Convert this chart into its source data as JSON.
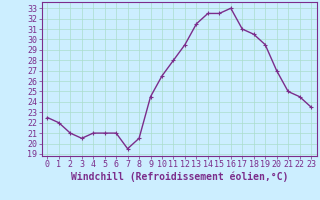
{
  "x": [
    0,
    1,
    2,
    3,
    4,
    5,
    6,
    7,
    8,
    9,
    10,
    11,
    12,
    13,
    14,
    15,
    16,
    17,
    18,
    19,
    20,
    21,
    22,
    23
  ],
  "y": [
    22.5,
    22.0,
    21.0,
    20.5,
    21.0,
    21.0,
    21.0,
    19.5,
    20.5,
    24.5,
    26.5,
    28.0,
    29.5,
    31.5,
    32.5,
    32.5,
    33.0,
    31.0,
    30.5,
    29.5,
    27.0,
    25.0,
    24.5,
    23.5
  ],
  "line_color": "#7b2d8b",
  "marker": "+",
  "marker_size": 3,
  "linewidth": 1.0,
  "xlabel": "Windchill (Refroidissement éolien,°C)",
  "xlabel_fontsize": 7,
  "ylabel_ticks": [
    19,
    20,
    21,
    22,
    23,
    24,
    25,
    26,
    27,
    28,
    29,
    30,
    31,
    32,
    33
  ],
  "ylim": [
    18.8,
    33.6
  ],
  "xlim": [
    -0.5,
    23.5
  ],
  "bg_color": "#cceeff",
  "grid_color": "#aaddcc",
  "tick_fontsize": 6,
  "spine_color": "#7b2d8b"
}
